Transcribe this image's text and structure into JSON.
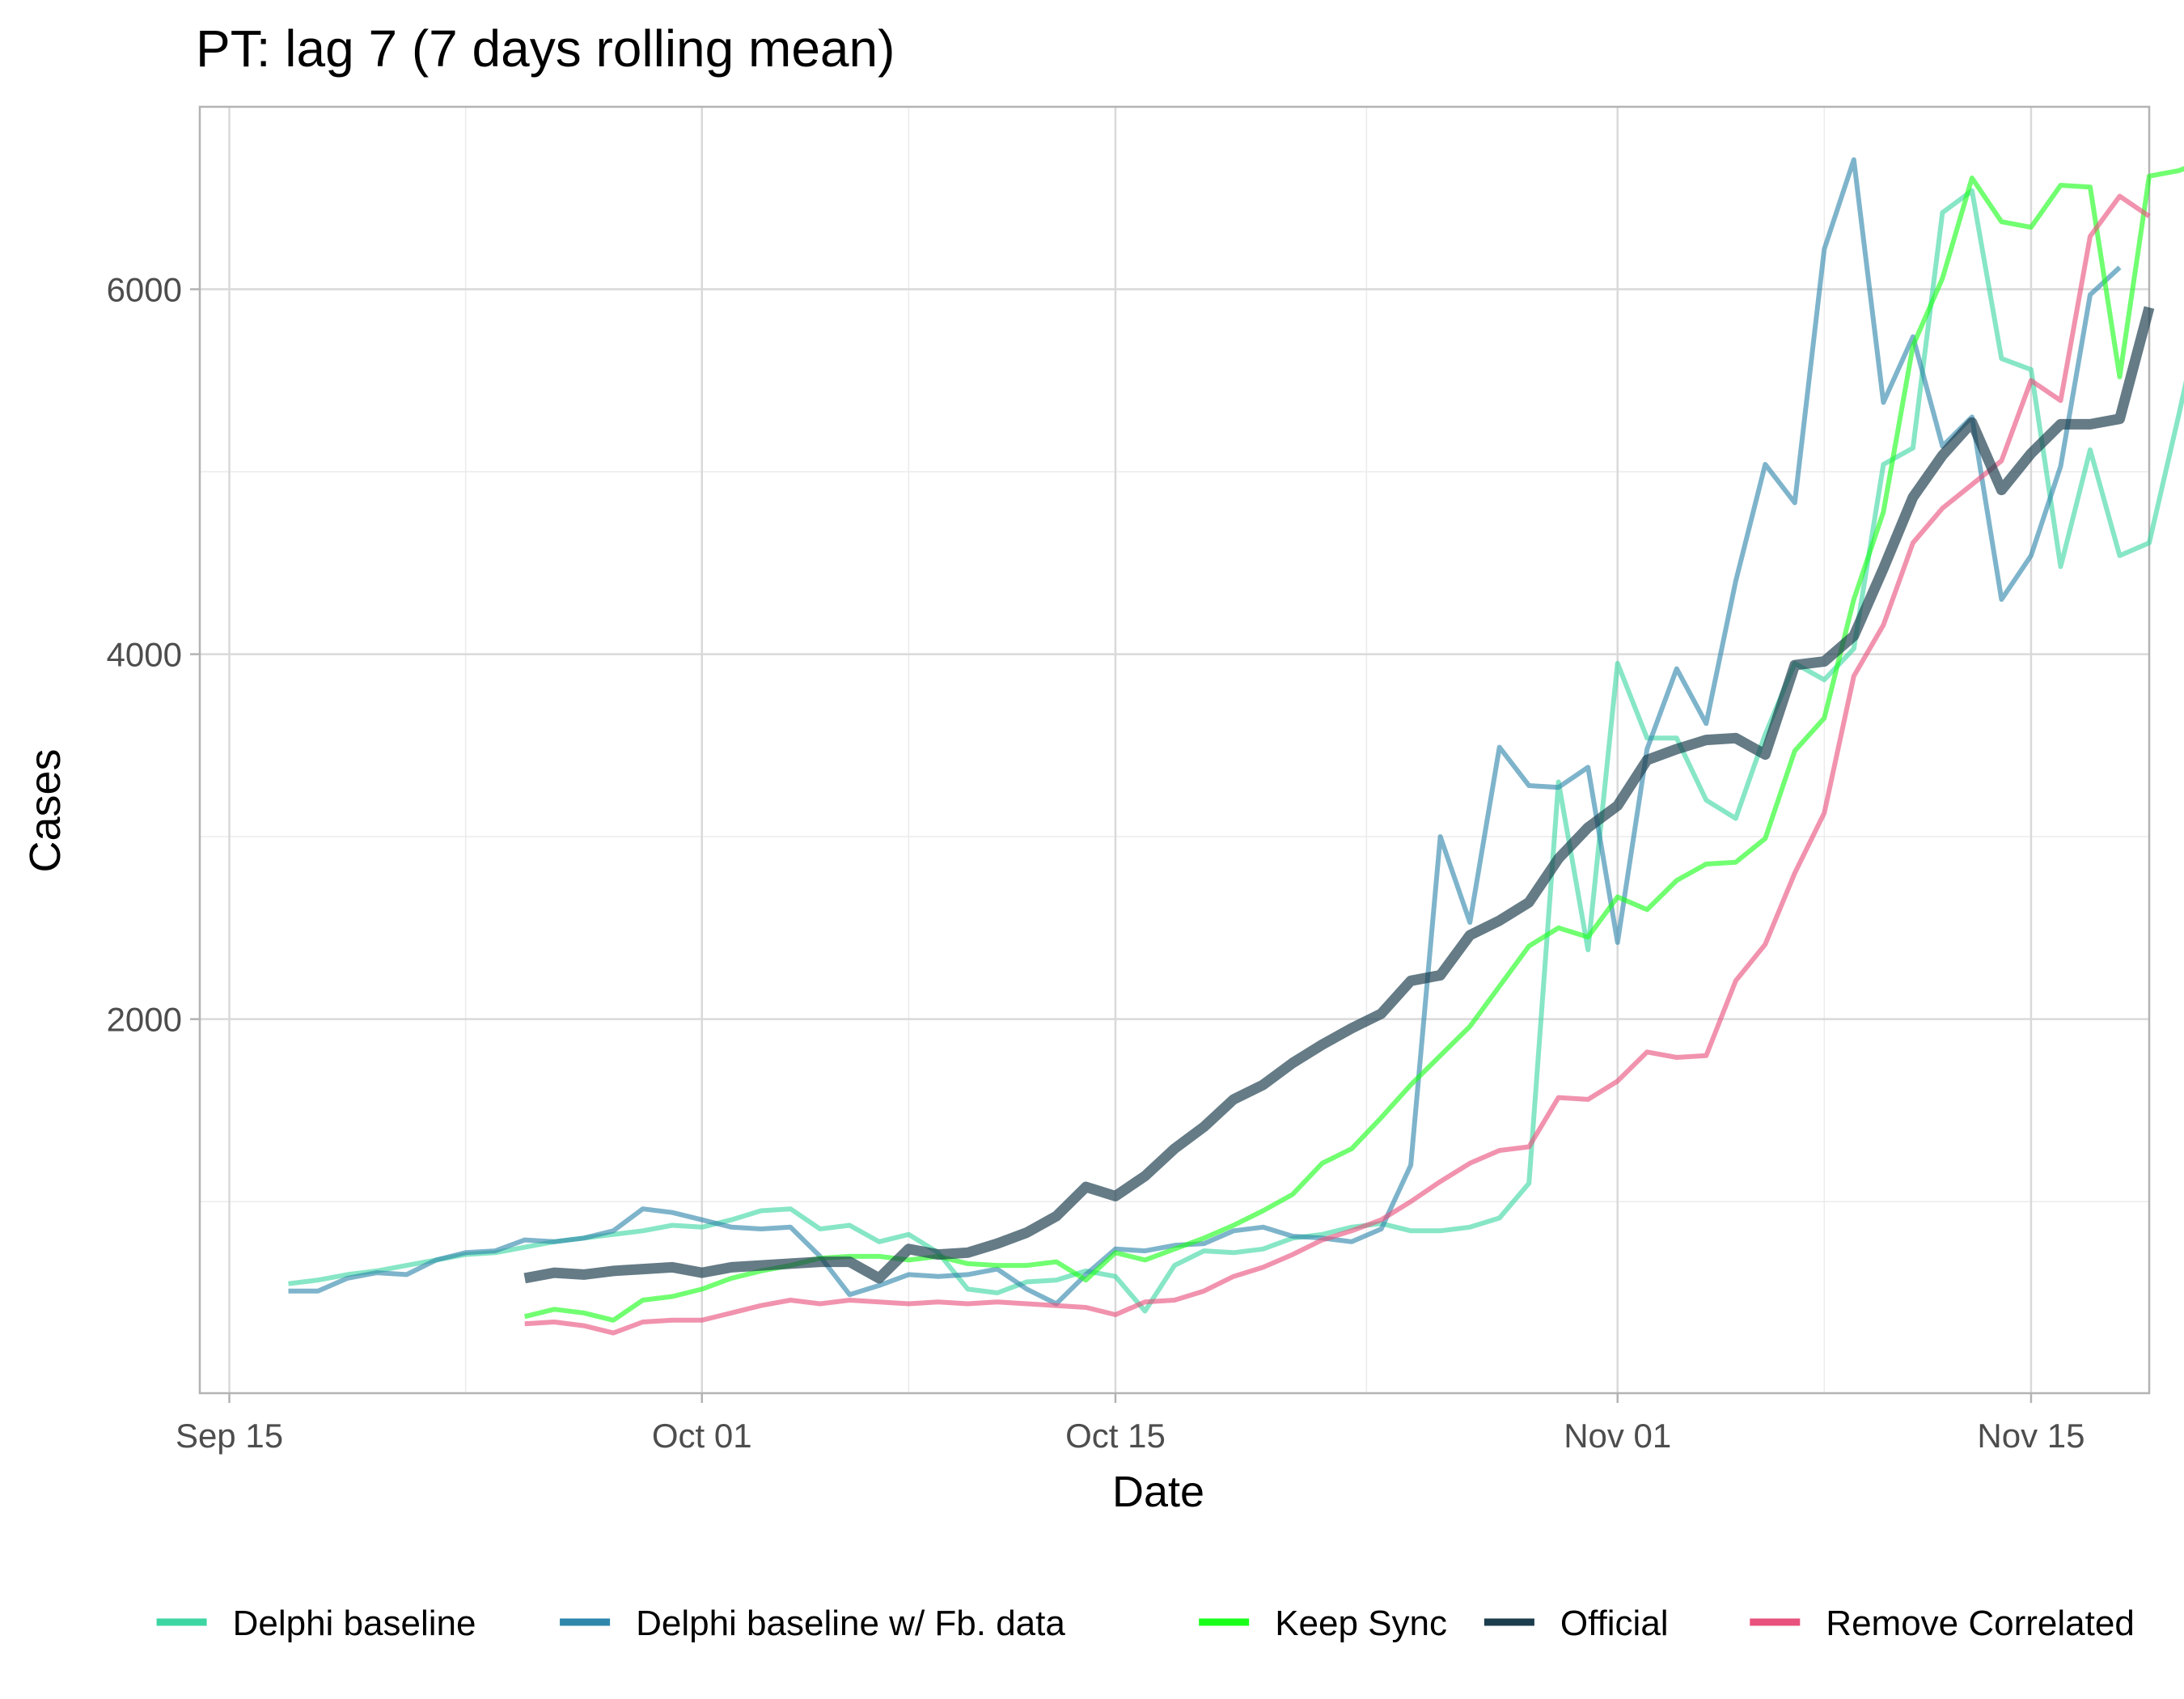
{
  "chart_data": {
    "type": "line",
    "title": "PT: lag 7 (7 days rolling mean)",
    "xlabel": "Date",
    "ylabel": "Cases",
    "xlim": [
      "2020-09-14",
      "2020-11-19"
    ],
    "ylim": [
      -50,
      7000
    ],
    "x_ticks": [
      {
        "date": "2020-09-15",
        "label": "Sep 15"
      },
      {
        "date": "2020-10-01",
        "label": "Oct 01"
      },
      {
        "date": "2020-10-15",
        "label": "Oct 15"
      },
      {
        "date": "2020-11-01",
        "label": "Nov 01"
      },
      {
        "date": "2020-11-15",
        "label": "Nov 15"
      }
    ],
    "y_ticks": [
      {
        "value": 2000,
        "label": "2000"
      },
      {
        "value": 4000,
        "label": "4000"
      },
      {
        "value": 6000,
        "label": "6000"
      }
    ],
    "y_minor": [
      1000,
      3000,
      5000
    ],
    "grid": true,
    "legend_position": "bottom",
    "series": [
      {
        "name": "Delphi baseline",
        "color": "#3DD6A3",
        "x_start": "2020-09-17",
        "values": [
          550,
          570,
          600,
          620,
          650,
          680,
          710,
          720,
          750,
          780,
          800,
          820,
          840,
          870,
          860,
          900,
          950,
          960,
          850,
          870,
          780,
          820,
          720,
          520,
          500,
          560,
          570,
          620,
          590,
          400,
          650,
          730,
          720,
          740,
          800,
          820,
          860,
          880,
          840,
          840,
          860,
          910,
          1100,
          3300,
          2380,
          3950,
          3540,
          3540,
          3200,
          3100,
          3560,
          3950,
          3860,
          4030,
          5040,
          5130,
          6420,
          6540,
          5620,
          5560,
          4480,
          5120,
          4540,
          4610,
          5310,
          6040,
          6270
        ]
      },
      {
        "name": "Delphi baseline w/ Fb. data",
        "color": "#2E86AB",
        "x_start": "2020-09-17",
        "values": [
          510,
          510,
          580,
          610,
          600,
          680,
          720,
          730,
          790,
          780,
          800,
          840,
          960,
          940,
          900,
          860,
          850,
          860,
          700,
          490,
          540,
          600,
          590,
          600,
          630,
          520,
          440,
          600,
          740,
          730,
          760,
          770,
          840,
          860,
          810,
          800,
          780,
          850,
          1200,
          3000,
          2530,
          3490,
          3280,
          3270,
          3380,
          2420,
          3480,
          3920,
          3620,
          4400,
          5040,
          4830,
          6220,
          6710,
          5380,
          5740,
          5140,
          5300,
          4300,
          4540,
          5030,
          5970,
          6120
        ]
      },
      {
        "name": "Keep Sync",
        "color": "#1AFF1A",
        "x_start": "2020-09-25",
        "values": [
          370,
          410,
          390,
          350,
          460,
          480,
          520,
          580,
          620,
          650,
          690,
          700,
          700,
          680,
          700,
          660,
          650,
          650,
          670,
          570,
          720,
          680,
          740,
          800,
          870,
          950,
          1040,
          1210,
          1290,
          1460,
          1640,
          1800,
          1960,
          2180,
          2400,
          2500,
          2450,
          2670,
          2600,
          2760,
          2850,
          2860,
          2990,
          3470,
          3650,
          4300,
          4780,
          5690,
          6060,
          6610,
          6370,
          6340,
          6570,
          6560,
          5520,
          6620,
          6650,
          6710
        ]
      },
      {
        "name": "Official",
        "color": "#1C3D4D",
        "x_start": "2020-09-25",
        "values": [
          580,
          610,
          600,
          620,
          630,
          640,
          610,
          640,
          650,
          660,
          670,
          670,
          580,
          740,
          710,
          720,
          770,
          830,
          920,
          1080,
          1030,
          1140,
          1290,
          1410,
          1560,
          1640,
          1760,
          1860,
          1950,
          2030,
          2210,
          2240,
          2460,
          2540,
          2640,
          2880,
          3050,
          3170,
          3420,
          3480,
          3530,
          3540,
          3450,
          3940,
          3960,
          4100,
          4470,
          4860,
          5090,
          5270,
          4900,
          5100,
          5260,
          5260,
          5290,
          5900
        ]
      },
      {
        "name": "Remove Correlated",
        "color": "#E8517C",
        "x_start": "2020-09-25",
        "values": [
          330,
          340,
          320,
          280,
          340,
          350,
          350,
          390,
          430,
          460,
          440,
          460,
          450,
          440,
          450,
          440,
          450,
          440,
          430,
          420,
          380,
          450,
          460,
          510,
          590,
          640,
          710,
          790,
          840,
          900,
          1000,
          1110,
          1210,
          1280,
          1300,
          1570,
          1560,
          1660,
          1820,
          1790,
          1800,
          2210,
          2410,
          2800,
          3130,
          3880,
          4160,
          4610,
          4800,
          4930,
          5060,
          5500,
          5390,
          6290,
          6510,
          6400
        ]
      }
    ]
  }
}
